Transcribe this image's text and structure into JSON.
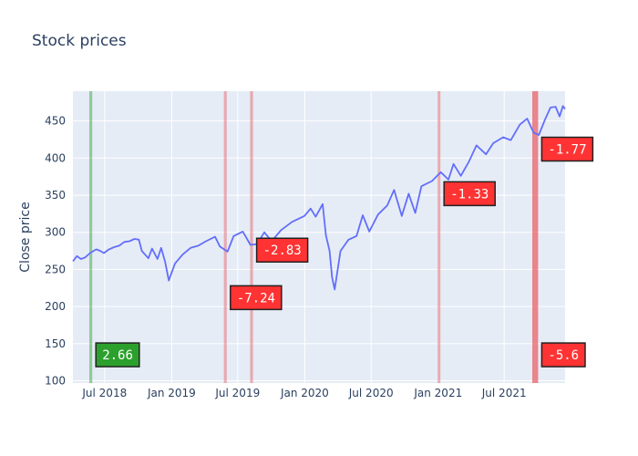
{
  "chart_data": {
    "type": "line",
    "title": "Stock prices",
    "xlabel": "",
    "ylabel": "Close price",
    "x_range": [
      "2018-04-05",
      "2021-12-15"
    ],
    "ylim": [
      97,
      490
    ],
    "y_ticks": [
      100,
      150,
      200,
      250,
      300,
      350,
      400,
      450
    ],
    "x_ticks": [
      {
        "date": "2018-07-01",
        "label": "Jul 2018"
      },
      {
        "date": "2019-01-01",
        "label": "Jan 2019"
      },
      {
        "date": "2019-07-01",
        "label": "Jul 2019"
      },
      {
        "date": "2020-01-01",
        "label": "Jan 2020"
      },
      {
        "date": "2020-07-01",
        "label": "Jul 2020"
      },
      {
        "date": "2021-01-01",
        "label": "Jan 2021"
      },
      {
        "date": "2021-07-01",
        "label": "Jul 2021"
      }
    ],
    "grid": true,
    "colors": {
      "line": "#636efa",
      "plot_bg": "#e5ecf6",
      "grid": "#ffffff",
      "up_band": "#2ca02c",
      "down_band": "#e8585f",
      "up_label_bg": "#2ca02c",
      "down_label_bg": "#ff3333"
    },
    "series": [
      {
        "points": [
          [
            "2018-04-05",
            261
          ],
          [
            "2018-04-16",
            268
          ],
          [
            "2018-04-27",
            264
          ],
          [
            "2018-05-08",
            266
          ],
          [
            "2018-05-22",
            272
          ],
          [
            "2018-06-08",
            277
          ],
          [
            "2018-06-19",
            275
          ],
          [
            "2018-06-29",
            272
          ],
          [
            "2018-07-13",
            277
          ],
          [
            "2018-07-27",
            280
          ],
          [
            "2018-08-10",
            282
          ],
          [
            "2018-08-24",
            287
          ],
          [
            "2018-09-07",
            288
          ],
          [
            "2018-09-21",
            291
          ],
          [
            "2018-10-03",
            290
          ],
          [
            "2018-10-11",
            275
          ],
          [
            "2018-10-29",
            265
          ],
          [
            "2018-11-08",
            278
          ],
          [
            "2018-11-23",
            264
          ],
          [
            "2018-12-03",
            279
          ],
          [
            "2018-12-14",
            260
          ],
          [
            "2018-12-24",
            235
          ],
          [
            "2019-01-10",
            258
          ],
          [
            "2019-01-31",
            270
          ],
          [
            "2019-02-22",
            279
          ],
          [
            "2019-03-15",
            282
          ],
          [
            "2019-04-05",
            288
          ],
          [
            "2019-04-30",
            294
          ],
          [
            "2019-05-13",
            281
          ],
          [
            "2019-06-03",
            274
          ],
          [
            "2019-06-20",
            295
          ],
          [
            "2019-07-15",
            301
          ],
          [
            "2019-08-05",
            283
          ],
          [
            "2019-08-23",
            284
          ],
          [
            "2019-09-12",
            300
          ],
          [
            "2019-10-02",
            288
          ],
          [
            "2019-10-28",
            303
          ],
          [
            "2019-11-27",
            314
          ],
          [
            "2019-12-31",
            322
          ],
          [
            "2020-01-17",
            332
          ],
          [
            "2020-01-31",
            321
          ],
          [
            "2020-02-19",
            338
          ],
          [
            "2020-02-28",
            296
          ],
          [
            "2020-03-09",
            275
          ],
          [
            "2020-03-16",
            239
          ],
          [
            "2020-03-23",
            223
          ],
          [
            "2020-04-08",
            275
          ],
          [
            "2020-04-30",
            290
          ],
          [
            "2020-05-22",
            295
          ],
          [
            "2020-06-08",
            323
          ],
          [
            "2020-06-26",
            301
          ],
          [
            "2020-07-20",
            324
          ],
          [
            "2020-08-14",
            336
          ],
          [
            "2020-09-02",
            357
          ],
          [
            "2020-09-23",
            322
          ],
          [
            "2020-10-12",
            352
          ],
          [
            "2020-10-30",
            326
          ],
          [
            "2020-11-16",
            362
          ],
          [
            "2020-12-15",
            369
          ],
          [
            "2021-01-08",
            381
          ],
          [
            "2021-01-29",
            371
          ],
          [
            "2021-02-12",
            392
          ],
          [
            "2021-03-04",
            376
          ],
          [
            "2021-03-26",
            395
          ],
          [
            "2021-04-16",
            417
          ],
          [
            "2021-05-12",
            405
          ],
          [
            "2021-06-01",
            420
          ],
          [
            "2021-06-28",
            428
          ],
          [
            "2021-07-19",
            424
          ],
          [
            "2021-08-13",
            445
          ],
          [
            "2021-09-02",
            453
          ],
          [
            "2021-09-20",
            434
          ],
          [
            "2021-10-04",
            431
          ],
          [
            "2021-10-22",
            453
          ],
          [
            "2021-11-05",
            468
          ],
          [
            "2021-11-19",
            469
          ],
          [
            "2021-11-30",
            456
          ],
          [
            "2021-12-09",
            470
          ],
          [
            "2021-12-15",
            466
          ]
        ]
      }
    ],
    "events": [
      {
        "start": "2018-05-20",
        "end": "2018-05-28",
        "direction": "up",
        "label": "2.66",
        "label_y": 135
      },
      {
        "start": "2019-05-24",
        "end": "2019-06-01",
        "direction": "down",
        "label": "-7.24",
        "label_y": 212
      },
      {
        "start": "2019-08-04",
        "end": "2019-08-12",
        "direction": "down",
        "label": "-2.83",
        "label_y": 276
      },
      {
        "start": "2020-12-30",
        "end": "2021-01-07",
        "direction": "down",
        "label": "-1.33",
        "label_y": 352
      },
      {
        "start": "2021-09-16",
        "end": "2021-10-02",
        "direction": "down",
        "label": "-1.77",
        "label_y": 412
      },
      {
        "start": "2021-09-16",
        "end": "2021-10-02",
        "direction": "down",
        "label": "-5.6",
        "label_y": 135
      }
    ]
  }
}
